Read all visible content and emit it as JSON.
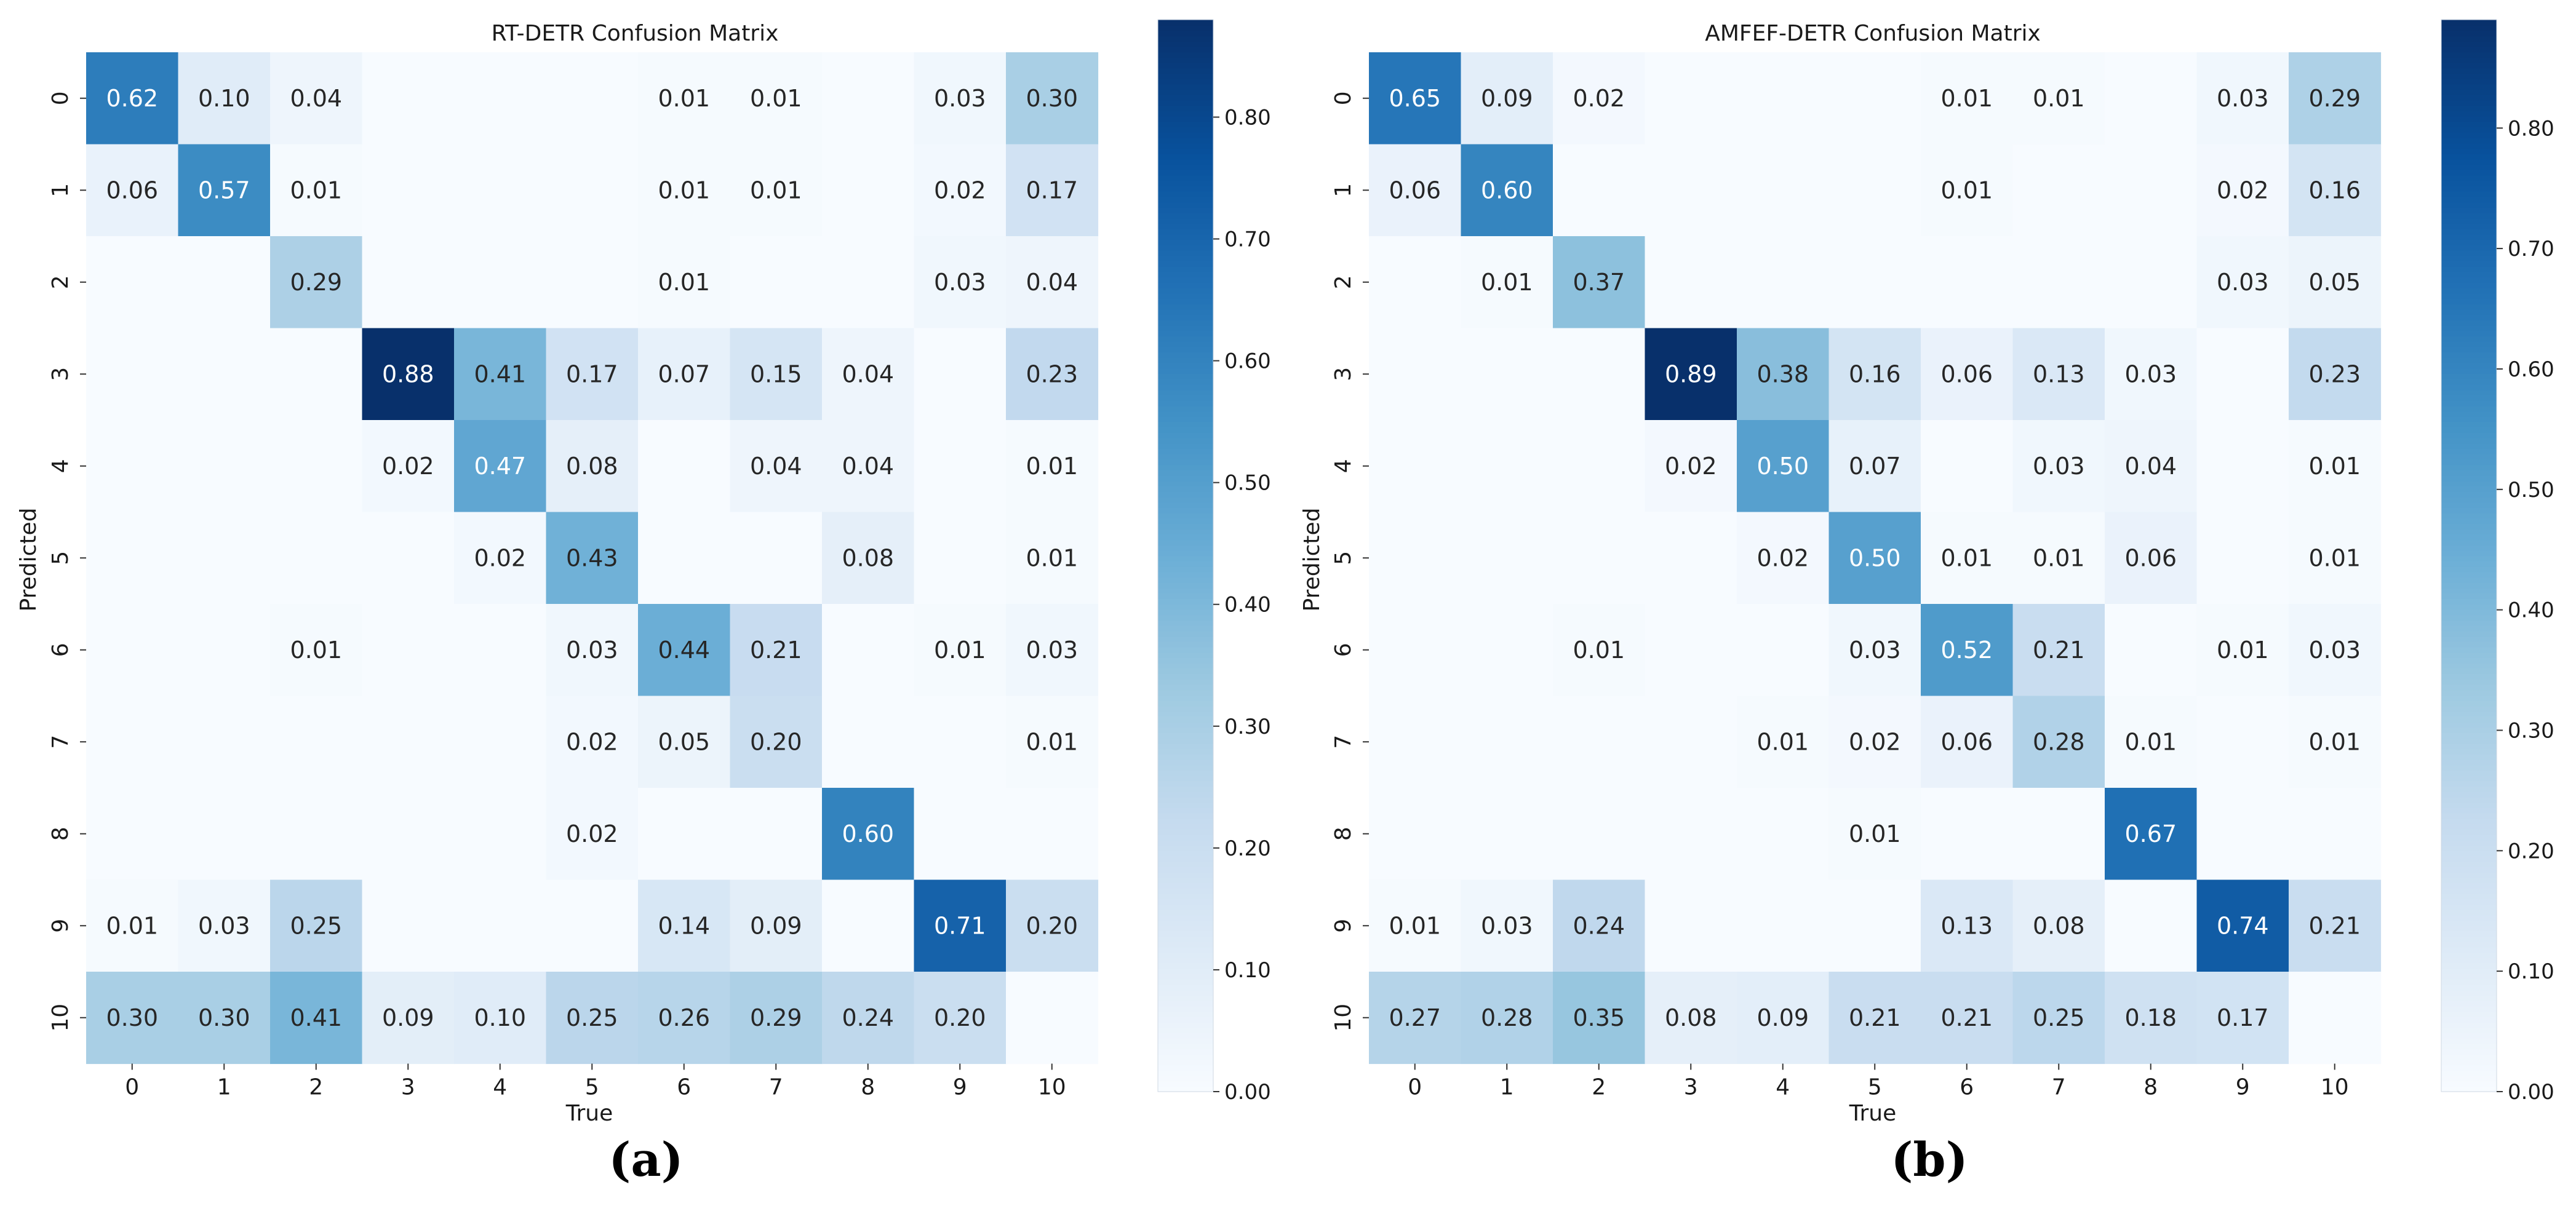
{
  "chart_data": [
    {
      "type": "heatmap",
      "title": "RT-DETR Confusion Matrix",
      "xlabel": "True",
      "ylabel": "Predicted",
      "panel_label": "(a)",
      "x_categories": [
        "0",
        "1",
        "2",
        "3",
        "4",
        "5",
        "6",
        "7",
        "8",
        "9",
        "10"
      ],
      "y_categories": [
        "0",
        "1",
        "2",
        "3",
        "4",
        "5",
        "6",
        "7",
        "8",
        "9",
        "10"
      ],
      "values": [
        [
          0.62,
          0.1,
          0.04,
          0.0,
          0.0,
          0.0,
          0.01,
          0.01,
          0.0,
          0.03,
          0.3
        ],
        [
          0.06,
          0.57,
          0.01,
          0.0,
          0.0,
          0.0,
          0.01,
          0.01,
          0.0,
          0.02,
          0.17
        ],
        [
          0.0,
          0.0,
          0.29,
          0.0,
          0.0,
          0.0,
          0.01,
          0.0,
          0.0,
          0.03,
          0.04
        ],
        [
          0.0,
          0.0,
          0.0,
          0.88,
          0.41,
          0.17,
          0.07,
          0.15,
          0.04,
          0.0,
          0.23
        ],
        [
          0.0,
          0.0,
          0.0,
          0.02,
          0.47,
          0.08,
          0.0,
          0.04,
          0.04,
          0.0,
          0.01
        ],
        [
          0.0,
          0.0,
          0.0,
          0.0,
          0.02,
          0.43,
          0.0,
          0.0,
          0.08,
          0.0,
          0.01
        ],
        [
          0.0,
          0.0,
          0.01,
          0.0,
          0.0,
          0.03,
          0.44,
          0.21,
          0.0,
          0.01,
          0.03
        ],
        [
          0.0,
          0.0,
          0.0,
          0.0,
          0.0,
          0.02,
          0.05,
          0.2,
          0.0,
          0.0,
          0.01
        ],
        [
          0.0,
          0.0,
          0.0,
          0.0,
          0.0,
          0.02,
          0.0,
          0.0,
          0.6,
          0.0,
          0.0
        ],
        [
          0.01,
          0.03,
          0.25,
          0.0,
          0.0,
          0.0,
          0.14,
          0.09,
          0.0,
          0.71,
          0.2
        ],
        [
          0.3,
          0.3,
          0.41,
          0.09,
          0.1,
          0.25,
          0.26,
          0.29,
          0.24,
          0.2,
          0.0
        ]
      ],
      "colorbar": {
        "range": [
          0,
          0.88
        ],
        "ticks": [
          0,
          0.1,
          0.2,
          0.3,
          0.4,
          0.5,
          0.6,
          0.7,
          0.8
        ],
        "tick_labels": [
          "0.00",
          "0.10",
          "0.20",
          "0.30",
          "0.40",
          "0.50",
          "0.60",
          "0.70",
          "0.80"
        ]
      }
    },
    {
      "type": "heatmap",
      "title": "AMFEF-DETR Confusion Matrix",
      "xlabel": "True",
      "ylabel": "Predicted",
      "panel_label": "(b)",
      "x_categories": [
        "0",
        "1",
        "2",
        "3",
        "4",
        "5",
        "6",
        "7",
        "8",
        "9",
        "10"
      ],
      "y_categories": [
        "0",
        "1",
        "2",
        "3",
        "4",
        "5",
        "6",
        "7",
        "8",
        "9",
        "10"
      ],
      "values": [
        [
          0.65,
          0.09,
          0.02,
          0.0,
          0.0,
          0.0,
          0.01,
          0.01,
          0.0,
          0.03,
          0.29
        ],
        [
          0.06,
          0.6,
          0.0,
          0.0,
          0.0,
          0.0,
          0.01,
          0.0,
          0.0,
          0.02,
          0.16
        ],
        [
          0.0,
          0.01,
          0.37,
          0.0,
          0.0,
          0.0,
          0.0,
          0.0,
          0.0,
          0.03,
          0.05
        ],
        [
          0.0,
          0.0,
          0.0,
          0.89,
          0.38,
          0.16,
          0.06,
          0.13,
          0.03,
          0.0,
          0.23
        ],
        [
          0.0,
          0.0,
          0.0,
          0.02,
          0.5,
          0.07,
          0.0,
          0.03,
          0.04,
          0.0,
          0.01
        ],
        [
          0.0,
          0.0,
          0.0,
          0.0,
          0.02,
          0.5,
          0.01,
          0.01,
          0.06,
          0.0,
          0.01
        ],
        [
          0.0,
          0.0,
          0.01,
          0.0,
          0.0,
          0.03,
          0.52,
          0.21,
          0.0,
          0.01,
          0.03
        ],
        [
          0.0,
          0.0,
          0.0,
          0.0,
          0.01,
          0.02,
          0.06,
          0.28,
          0.01,
          0.0,
          0.01
        ],
        [
          0.0,
          0.0,
          0.0,
          0.0,
          0.0,
          0.01,
          0.0,
          0.0,
          0.67,
          0.0,
          0.0
        ],
        [
          0.01,
          0.03,
          0.24,
          0.0,
          0.0,
          0.0,
          0.13,
          0.08,
          0.0,
          0.74,
          0.21
        ],
        [
          0.27,
          0.28,
          0.35,
          0.08,
          0.09,
          0.21,
          0.21,
          0.25,
          0.18,
          0.17,
          0.0
        ]
      ],
      "colorbar": {
        "range": [
          0,
          0.89
        ],
        "ticks": [
          0,
          0.1,
          0.2,
          0.3,
          0.4,
          0.5,
          0.6,
          0.7,
          0.8
        ],
        "tick_labels": [
          "0.00",
          "0.10",
          "0.20",
          "0.30",
          "0.40",
          "0.50",
          "0.60",
          "0.70",
          "0.80"
        ]
      }
    }
  ]
}
